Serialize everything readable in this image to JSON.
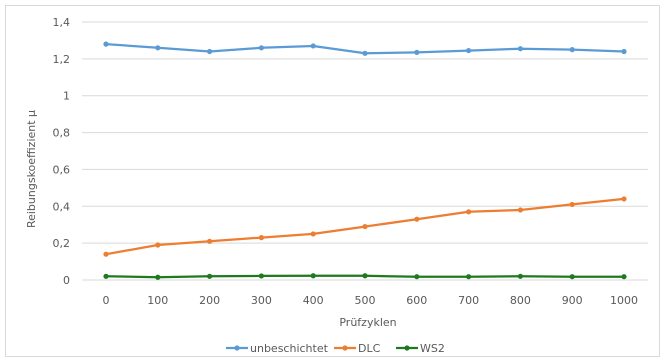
{
  "chart_data": {
    "type": "line",
    "x": [
      0,
      100,
      200,
      300,
      400,
      500,
      600,
      700,
      800,
      900,
      1000
    ],
    "xlabel": "Prüfzyklen",
    "ylabel": "Reibungskoeffizient µ",
    "ylim": [
      0,
      1.4
    ],
    "y_ticks": [
      "0",
      "0,2",
      "0,4",
      "0,6",
      "0,8",
      "1",
      "1,2",
      "1,4"
    ],
    "x_ticks": [
      "0",
      "100",
      "200",
      "300",
      "400",
      "500",
      "600",
      "700",
      "800",
      "900",
      "1000"
    ],
    "grid": true,
    "legend_position": "bottom",
    "series": [
      {
        "name": "unbeschichtet",
        "color": "#5b9bd5",
        "values": [
          1.28,
          1.26,
          1.24,
          1.26,
          1.27,
          1.23,
          1.235,
          1.245,
          1.255,
          1.25,
          1.24
        ]
      },
      {
        "name": "DLC",
        "color": "#ed7d31",
        "values": [
          0.14,
          0.19,
          0.21,
          0.23,
          0.25,
          0.29,
          0.33,
          0.37,
          0.38,
          0.41,
          0.44
        ]
      },
      {
        "name": "WS2",
        "color": "#1e7a1e",
        "values": [
          0.02,
          0.015,
          0.02,
          0.022,
          0.023,
          0.023,
          0.018,
          0.018,
          0.02,
          0.018,
          0.018
        ]
      }
    ]
  }
}
